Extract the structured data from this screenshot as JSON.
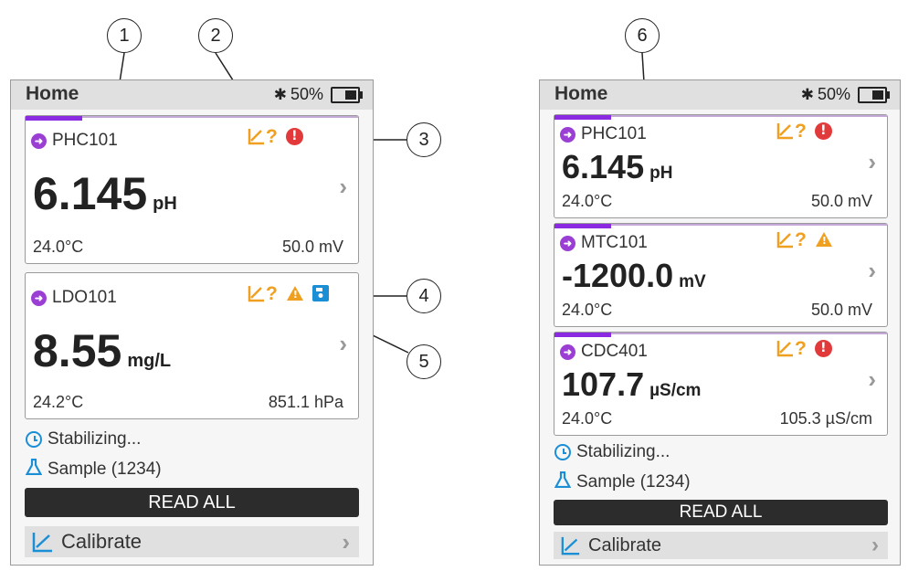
{
  "callouts": [
    "1",
    "2",
    "3",
    "4",
    "5",
    "6"
  ],
  "icons": {
    "bluetooth": "bluetooth-icon",
    "battery": "battery-icon",
    "cal_needed": "calibration-needed-icon",
    "error": "error-icon",
    "warning": "warning-icon",
    "save": "save-icon",
    "clock": "clock-icon",
    "flask": "flask-icon",
    "calibrate": "calibrate-icon",
    "chevron": "chevron-right-icon"
  },
  "colors": {
    "accent_purple": "#8a2be2",
    "cal_orange": "#f0a020",
    "error_red": "#e23a3a",
    "info_blue": "#1a8fd6",
    "button_dark": "#2c2c2c"
  },
  "screen1": {
    "title": "Home",
    "bluetooth": "✱",
    "battery_pct": "50%",
    "battery_level": 0.5,
    "cards": [
      {
        "sensor": "PHC101",
        "value": "6.145",
        "unit": "pH",
        "temp": "24.0°C",
        "aux": "50.0 mV",
        "cal_q": "?",
        "error": "!",
        "progress": 0.17
      },
      {
        "sensor": "LDO101",
        "value": "8.55",
        "unit": "mg/L",
        "temp": "24.2°C",
        "aux": "851.1 hPa",
        "cal_q": "?",
        "warning": "!"
      }
    ],
    "status": "Stabilizing...",
    "sample": "Sample (1234)",
    "read_all": "READ ALL",
    "calibrate": "Calibrate"
  },
  "screen2": {
    "title": "Home",
    "bluetooth": "✱",
    "battery_pct": "50%",
    "battery_level": 0.5,
    "cards": [
      {
        "sensor": "PHC101",
        "value": "6.145",
        "unit": "pH",
        "temp": "24.0°C",
        "aux": "50.0 mV",
        "cal_q": "?",
        "error": "!",
        "progress": 0.17
      },
      {
        "sensor": "MTC101",
        "value": "-1200.0",
        "unit": "mV",
        "temp": "24.0°C",
        "aux": "50.0 mV",
        "cal_q": "?",
        "warning": "!",
        "progress": 0.17
      },
      {
        "sensor": "CDC401",
        "value": "107.7",
        "unit": "µS/cm",
        "temp": "24.0°C",
        "aux": "105.3 µS/cm",
        "cal_q": "?",
        "error": "!",
        "progress": 0.17
      }
    ],
    "status": "Stabilizing...",
    "sample": "Sample (1234)",
    "read_all": "READ ALL",
    "calibrate": "Calibrate"
  }
}
